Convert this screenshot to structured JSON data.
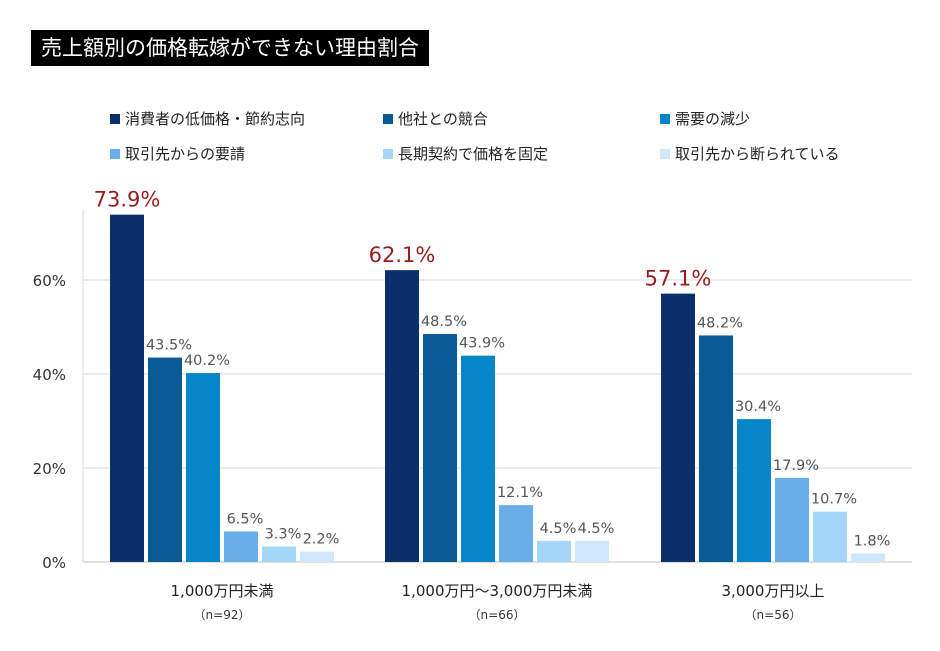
{
  "chart_data": {
    "type": "bar",
    "title": "売上額別の価格転嫁ができない理由割合",
    "categories": [
      "1,000万円未満",
      "1,000万円～3,000万円未満",
      "3,000万円以上"
    ],
    "category_notes": [
      "（n=92）",
      "（n=66）",
      "（n=56）"
    ],
    "series": [
      {
        "name": "消費者の低価格・節約志向",
        "color": "#0b2f6b",
        "values": [
          73.9,
          62.1,
          57.1
        ]
      },
      {
        "name": "他社との競合",
        "color": "#0a5a98",
        "values": [
          43.5,
          48.5,
          48.2
        ]
      },
      {
        "name": "需要の減少",
        "color": "#0685c8",
        "values": [
          40.2,
          43.9,
          30.4
        ]
      },
      {
        "name": "取引先からの要請",
        "color": "#6aaee9",
        "values": [
          6.5,
          12.1,
          17.9
        ]
      },
      {
        "name": "長期契約で価格を固定",
        "color": "#a3d6f8",
        "values": [
          3.3,
          4.5,
          10.7
        ]
      },
      {
        "name": "取引先から断られている",
        "color": "#cfe8fb",
        "values": [
          2.2,
          4.5,
          1.8
        ]
      }
    ],
    "yticks": [
      "0%",
      "20%",
      "40%",
      "60%"
    ],
    "ylim": [
      0,
      75
    ],
    "grid": true,
    "legend": "top",
    "highlight_label_color": "#9b1c1c",
    "label_color": "#555555"
  }
}
